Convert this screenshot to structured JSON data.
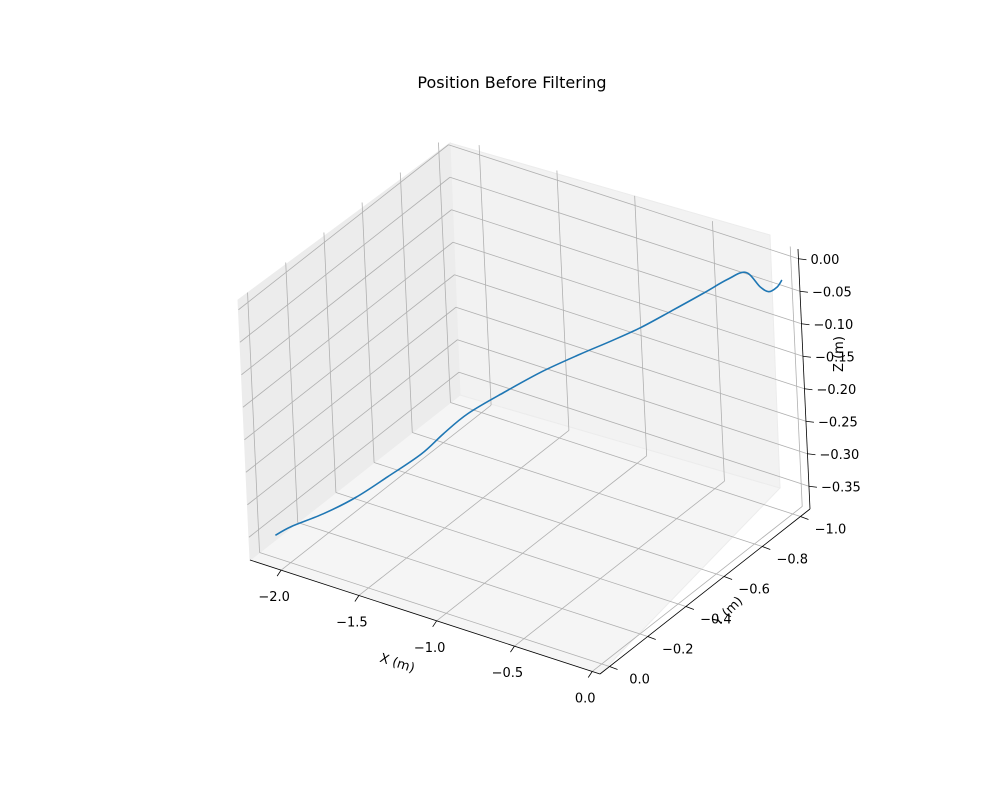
{
  "chart_data": {
    "type": "line3d",
    "title": "Position Before Filtering",
    "xlabel": "X (m)",
    "ylabel": "Y (m)",
    "zlabel": "Z (m)",
    "xlim": [
      -2.2,
      0.05
    ],
    "ylim": [
      -1.05,
      0.05
    ],
    "zlim": [
      -0.385,
      0.015
    ],
    "grid": true,
    "line_color": "#1f77b4",
    "x_ticks": [
      {
        "value": -2.0,
        "label": "−2.0"
      },
      {
        "value": -1.5,
        "label": "−1.5"
      },
      {
        "value": -1.0,
        "label": "−1.0"
      },
      {
        "value": -0.5,
        "label": "−0.5"
      },
      {
        "value": 0.0,
        "label": "0.0"
      }
    ],
    "y_ticks": [
      {
        "value": -1.0,
        "label": "−1.0"
      },
      {
        "value": -0.8,
        "label": "−0.8"
      },
      {
        "value": -0.6,
        "label": "−0.6"
      },
      {
        "value": -0.4,
        "label": "−0.4"
      },
      {
        "value": -0.2,
        "label": "−0.2"
      },
      {
        "value": 0.0,
        "label": "0.0"
      }
    ],
    "z_ticks": [
      {
        "value": 0.0,
        "label": "0.00"
      },
      {
        "value": -0.05,
        "label": "−0.05"
      },
      {
        "value": -0.1,
        "label": "−0.10"
      },
      {
        "value": -0.15,
        "label": "−0.15"
      },
      {
        "value": -0.2,
        "label": "−0.20"
      },
      {
        "value": -0.25,
        "label": "−0.25"
      },
      {
        "value": -0.3,
        "label": "−0.30"
      },
      {
        "value": -0.35,
        "label": "−0.35"
      }
    ],
    "series": [
      {
        "x": [
          -2.13,
          -2.05,
          -1.9,
          -1.75,
          -1.6,
          -1.45,
          -1.35,
          -1.25,
          -1.1,
          -0.95,
          -0.8,
          -0.68,
          -0.55,
          -0.42,
          -0.3,
          -0.2,
          -0.13,
          -0.08,
          -0.05,
          -0.02,
          0.0
        ],
        "y": [
          -0.03,
          -0.05,
          -0.1,
          -0.15,
          -0.2,
          -0.26,
          -0.3,
          -0.35,
          -0.42,
          -0.5,
          -0.58,
          -0.64,
          -0.7,
          -0.76,
          -0.83,
          -0.88,
          -0.92,
          -0.95,
          -0.97,
          -0.99,
          -1.0
        ],
        "z": [
          -0.36,
          -0.345,
          -0.325,
          -0.3,
          -0.268,
          -0.235,
          -0.205,
          -0.178,
          -0.15,
          -0.125,
          -0.105,
          -0.09,
          -0.072,
          -0.05,
          -0.03,
          -0.012,
          -0.005,
          -0.03,
          -0.04,
          -0.035,
          -0.025
        ]
      }
    ]
  }
}
